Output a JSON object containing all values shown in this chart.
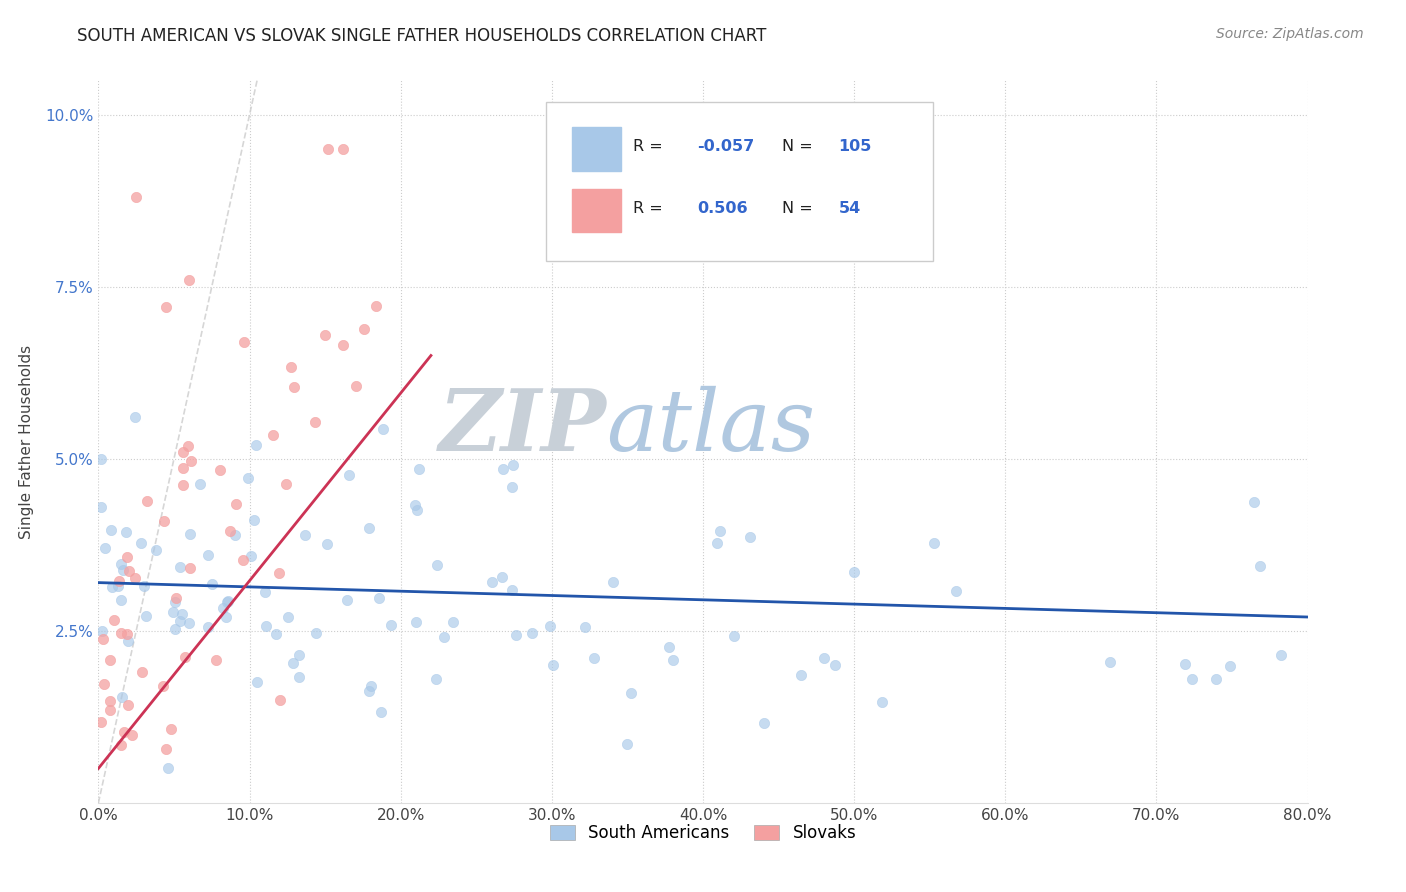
{
  "title": "SOUTH AMERICAN VS SLOVAK SINGLE FATHER HOUSEHOLDS CORRELATION CHART",
  "source": "Source: ZipAtlas.com",
  "ylabel": "Single Father Households",
  "xmin": 0.0,
  "xmax": 0.8,
  "ymin": 0.0,
  "ymax": 0.105,
  "xticks": [
    0.0,
    0.1,
    0.2,
    0.3,
    0.4,
    0.5,
    0.6,
    0.7,
    0.8
  ],
  "xtick_labels": [
    "0.0%",
    "10.0%",
    "20.0%",
    "30.0%",
    "40.0%",
    "50.0%",
    "60.0%",
    "70.0%",
    "80.0%"
  ],
  "yticks": [
    0.025,
    0.05,
    0.075,
    0.1
  ],
  "ytick_labels": [
    "2.5%",
    "5.0%",
    "7.5%",
    "10.0%"
  ],
  "blue_color": "#a8c8e8",
  "pink_color": "#f4a0a0",
  "blue_line_color": "#2255aa",
  "pink_line_color": "#cc3355",
  "diag_line_color": "#cccccc",
  "R_blue": -0.057,
  "N_blue": 105,
  "R_pink": 0.506,
  "N_pink": 54,
  "legend_label_blue": "South Americans",
  "legend_label_pink": "Slovaks",
  "background_color": "#ffffff",
  "grid_color": "#cccccc",
  "watermark_zip": "ZIP",
  "watermark_atlas": "atlas",
  "watermark_color_zip": "#c8d4e0",
  "watermark_color_atlas": "#aac4e0"
}
